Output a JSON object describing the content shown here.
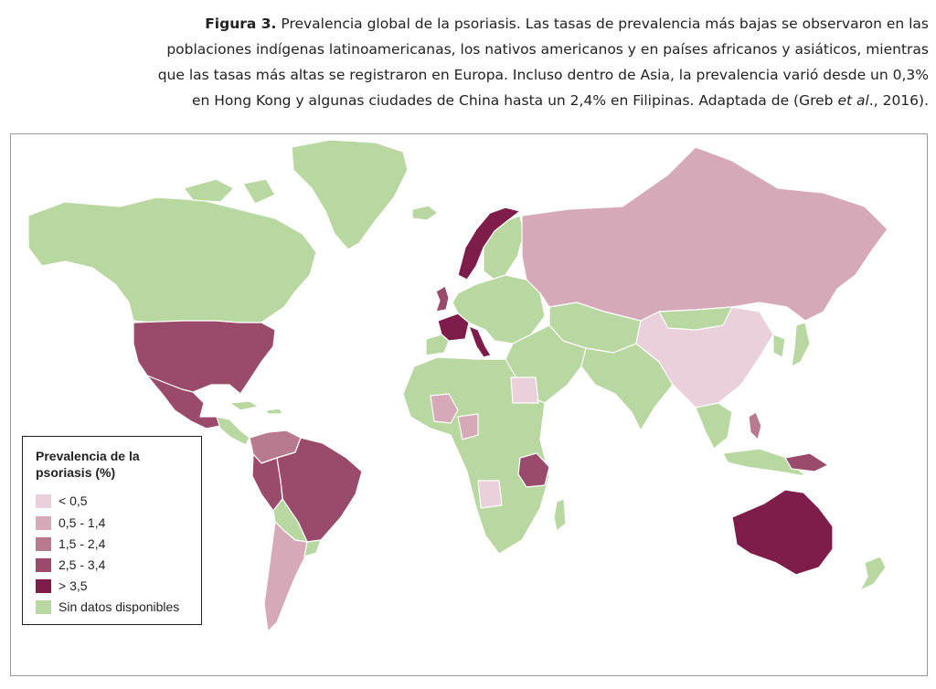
{
  "caption": {
    "label": "Figura 3.",
    "line1_rest": " Prevalencia global de la psoriasis. Las tasas de prevalencia más bajas se observaron en las",
    "line2": "poblaciones indígenas latinoamericanas, los nativos americanos y en países africanos y asiáticos, mientras",
    "line3": "que las tasas más altas se registraron en Europa. Incluso dentro de Asia, la prevalencia varió desde un 0,3%",
    "line4_pre": "en Hong Kong y algunas ciudades de China hasta un 2,4% en Filipinas. Adaptada de (Greb ",
    "line4_etal": "et al",
    "line4_post": "., 2016)."
  },
  "map": {
    "colors": {
      "no_data": "#b9d7a0",
      "lt_0_5": "#ead0da",
      "r_0_5_1_4": "#d5a9b7",
      "r_1_5_2_4": "#b77a8e",
      "r_2_5_3_4": "#9a4b6b",
      "gt_3_5": "#7e1c4a",
      "border": "#ffffff"
    }
  },
  "legend": {
    "title": "Prevalencia de la psoriasis (%)",
    "items": [
      {
        "label": "< 0,5",
        "color": "#ead0da"
      },
      {
        "label": "0,5 - 1,4",
        "color": "#d5a9b7"
      },
      {
        "label": "1,5 - 2,4",
        "color": "#b77a8e"
      },
      {
        "label": "2,5 - 3,4",
        "color": "#9a4b6b"
      },
      {
        "label": "> 3,5",
        "color": "#7e1c4a"
      },
      {
        "label": "Sin datos disponibles",
        "color": "#b9d7a0"
      }
    ]
  }
}
